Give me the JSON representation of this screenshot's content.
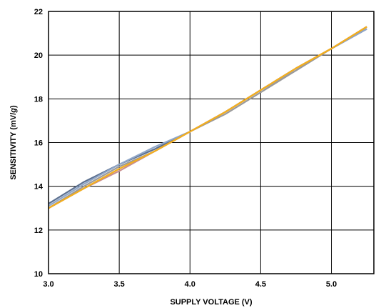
{
  "chart_data": {
    "type": "line",
    "title": "",
    "xlabel": "SUPPLY VOLTAGE (V)",
    "ylabel_prefix": "SENSITIVITY (mV/",
    "ylabel_italic": "g",
    "ylabel_suffix": ")",
    "xlim": [
      3.0,
      5.3
    ],
    "ylim": [
      10,
      22
    ],
    "xticks": [
      3.0,
      3.5,
      4.0,
      4.5,
      5.0
    ],
    "xtick_labels": [
      "3.0",
      "3.5",
      "4.0",
      "4.5",
      "5.0"
    ],
    "yticks": [
      10,
      12,
      14,
      16,
      18,
      20,
      22
    ],
    "ytick_labels": [
      "10",
      "12",
      "14",
      "16",
      "18",
      "20",
      "22"
    ],
    "grid": true,
    "series": [
      {
        "color": "#5b6f8f",
        "x": [
          3.0,
          3.25,
          3.5,
          3.75,
          4.0,
          4.25,
          4.5,
          4.75,
          5.0,
          5.25
        ],
        "y": [
          13.2,
          14.2,
          15.0,
          15.7,
          16.5,
          17.4,
          18.4,
          19.4,
          20.3,
          21.2
        ]
      },
      {
        "color": "#8fa6c8",
        "x": [
          3.0,
          3.25,
          3.5,
          3.75,
          4.0,
          4.25,
          4.5,
          4.75,
          5.0,
          5.25
        ],
        "y": [
          13.1,
          14.1,
          15.0,
          15.8,
          16.5,
          17.4,
          18.4,
          19.3,
          20.3,
          21.2
        ]
      },
      {
        "color": "#9a9a9a",
        "x": [
          3.0,
          3.25,
          3.5,
          3.75,
          4.0,
          4.25,
          4.5,
          4.75,
          5.0,
          5.25
        ],
        "y": [
          13.0,
          14.0,
          14.9,
          15.6,
          16.5,
          17.3,
          18.3,
          19.3,
          20.3,
          21.3
        ]
      },
      {
        "color": "#c98e8e",
        "x": [
          3.0,
          3.25,
          3.5,
          3.75,
          4.0,
          4.25,
          4.5,
          4.75,
          5.0,
          5.25
        ],
        "y": [
          13.0,
          13.9,
          14.7,
          15.6,
          16.5,
          17.4,
          18.4,
          19.4,
          20.3,
          21.3
        ]
      },
      {
        "color": "#e07a2a",
        "x": [
          3.0,
          3.25,
          3.5,
          3.75,
          4.0,
          4.25,
          4.5,
          4.75,
          5.0,
          5.25
        ],
        "y": [
          13.0,
          13.9,
          14.8,
          15.6,
          16.5,
          17.4,
          18.4,
          19.4,
          20.3,
          21.3
        ]
      },
      {
        "color": "#f2b01e",
        "x": [
          3.0,
          3.25,
          3.5,
          3.75,
          4.0,
          4.25,
          4.5,
          4.75,
          5.0,
          5.25
        ],
        "y": [
          13.0,
          13.9,
          14.8,
          15.6,
          16.5,
          17.4,
          18.4,
          19.4,
          20.3,
          21.3
        ]
      }
    ]
  }
}
